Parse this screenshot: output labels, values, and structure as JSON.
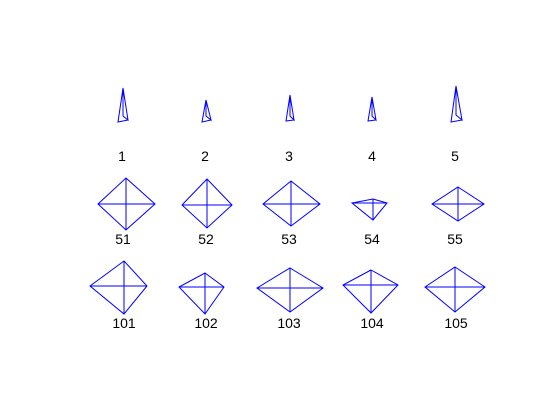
{
  "colors": {
    "background": "#ffffff",
    "stroke": "#0000ff",
    "label": "#000000"
  },
  "figure": {
    "rows": [
      {
        "row_type": "thin-spike",
        "items": [
          {
            "label": "1"
          },
          {
            "label": "2"
          },
          {
            "label": "3"
          },
          {
            "label": "4"
          },
          {
            "label": "5"
          }
        ]
      },
      {
        "row_type": "diamond",
        "items": [
          {
            "label": "51"
          },
          {
            "label": "52"
          },
          {
            "label": "53"
          },
          {
            "label": "54"
          },
          {
            "label": "55"
          }
        ]
      },
      {
        "row_type": "diamond",
        "items": [
          {
            "label": "101"
          },
          {
            "label": "102"
          },
          {
            "label": "103"
          },
          {
            "label": "104"
          },
          {
            "label": "105"
          }
        ]
      }
    ]
  }
}
